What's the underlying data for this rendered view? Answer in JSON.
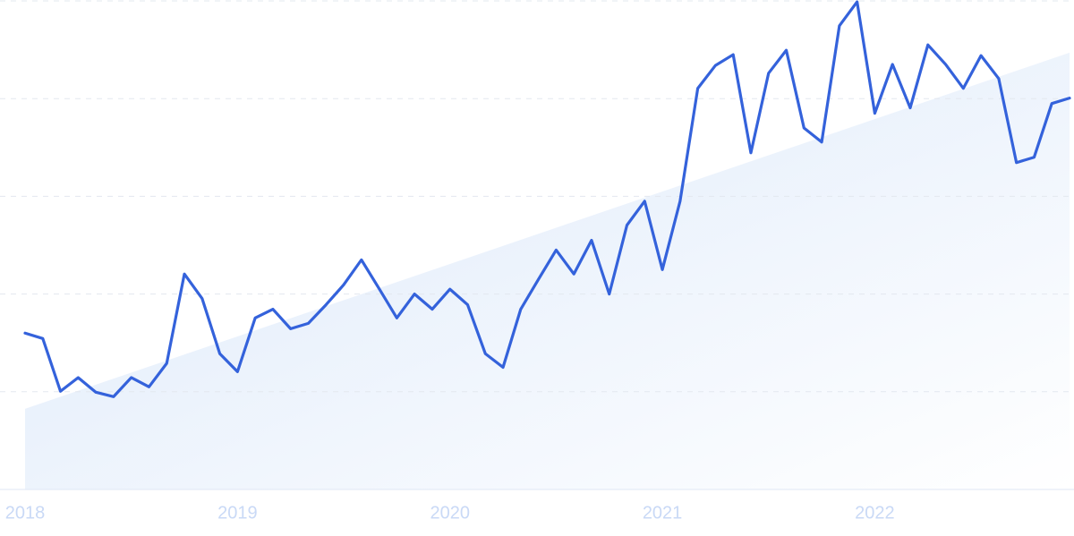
{
  "chart_data": {
    "type": "line",
    "categories": [
      "2018",
      null,
      null,
      null,
      null,
      null,
      null,
      null,
      null,
      null,
      null,
      null,
      "2019",
      null,
      null,
      null,
      null,
      null,
      null,
      null,
      null,
      null,
      null,
      null,
      "2020",
      null,
      null,
      null,
      null,
      null,
      null,
      null,
      null,
      null,
      null,
      null,
      "2021",
      null,
      null,
      null,
      null,
      null,
      null,
      null,
      null,
      null,
      null,
      null,
      "2022",
      null,
      null,
      null,
      null,
      null,
      null,
      null,
      null,
      null,
      null,
      null
    ],
    "series": [
      {
        "color": "#3462db",
        "values": [
          32.0,
          30.9,
          20.1,
          22.9,
          19.9,
          19.0,
          22.9,
          21.0,
          25.8,
          44.1,
          39.1,
          27.8,
          24.1,
          35.1,
          36.9,
          32.9,
          34.0,
          37.8,
          41.9,
          47.0,
          41.1,
          35.1,
          40.0,
          36.9,
          41.0,
          37.8,
          27.8,
          25.0,
          36.9,
          43.0,
          49.0,
          44.1,
          51.0,
          40.0,
          54.1,
          59.0,
          45.0,
          59.0,
          82.1,
          86.8,
          89.0,
          68.9,
          85.2,
          89.9,
          74.0,
          71.1,
          94.9,
          99.8,
          77.0,
          87.0,
          78.1,
          91.0,
          87.0,
          82.1,
          88.8,
          84.1,
          66.9,
          68.0,
          79.0,
          80.1
        ]
      }
    ],
    "trend": {
      "start": 16.5,
      "end": 89.4,
      "color": "#dbe8fa"
    },
    "ylim": [
      0,
      100
    ],
    "yticks": [
      0,
      20,
      40,
      60,
      80,
      100
    ],
    "grid": true
  }
}
